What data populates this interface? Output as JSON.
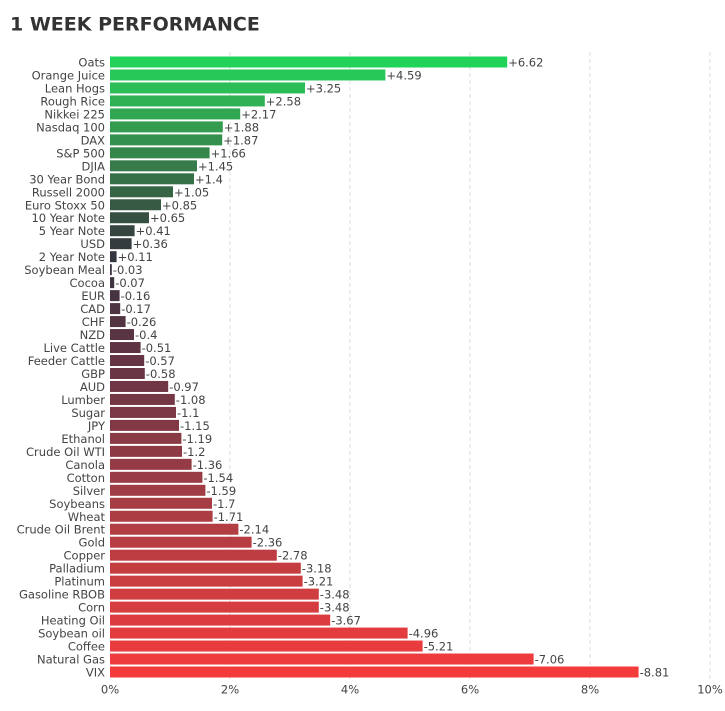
{
  "chart_data": {
    "type": "hbar",
    "title": "1 WEEK PERFORMANCE",
    "categories": [
      "Oats",
      "Orange Juice",
      "Lean Hogs",
      "Rough Rice",
      "Nikkei 225",
      "Nasdaq 100",
      "DAX",
      "S&P 500",
      "DJIA",
      "30 Year Bond",
      "Russell 2000",
      "Euro Stoxx 50",
      "10 Year Note",
      "5 Year Note",
      "USD",
      "2 Year Note",
      "Soybean Meal",
      "Cocoa",
      "EUR",
      "CAD",
      "CHF",
      "NZD",
      "Live Cattle",
      "Feeder Cattle",
      "GBP",
      "AUD",
      "Lumber",
      "Sugar",
      "JPY",
      "Ethanol",
      "Crude Oil WTI",
      "Canola",
      "Cotton",
      "Silver",
      "Soybeans",
      "Wheat",
      "Crude Oil Brent",
      "Gold",
      "Copper",
      "Palladium",
      "Platinum",
      "Gasoline RBOB",
      "Corn",
      "Heating Oil",
      "Soybean oil",
      "Coffee",
      "Natural Gas",
      "VIX"
    ],
    "values": [
      6.62,
      4.59,
      3.25,
      2.58,
      2.17,
      1.88,
      1.87,
      1.66,
      1.45,
      1.4,
      1.05,
      0.85,
      0.65,
      0.41,
      0.36,
      0.11,
      -0.03,
      -0.07,
      -0.16,
      -0.17,
      -0.26,
      -0.4,
      -0.51,
      -0.57,
      -0.58,
      -0.97,
      -1.08,
      -1.1,
      -1.15,
      -1.19,
      -1.2,
      -1.36,
      -1.54,
      -1.59,
      -1.7,
      -1.71,
      -2.14,
      -2.36,
      -2.78,
      -3.18,
      -3.21,
      -3.48,
      -3.48,
      -3.67,
      -4.96,
      -5.21,
      -7.06,
      -8.81
    ],
    "value_labels": [
      "+6.62",
      "+4.59",
      "+3.25",
      "+2.58",
      "+2.17",
      "+1.88",
      "+1.87",
      "+1.66",
      "+1.45",
      "+1.4",
      "+1.05",
      "+0.85",
      "+0.65",
      "+0.41",
      "+0.36",
      "+0.11",
      "-0.03",
      "-0.07",
      "-0.16",
      "-0.17",
      "-0.26",
      "-0.4",
      "-0.51",
      "-0.57",
      "-0.58",
      "-0.97",
      "-1.08",
      "-1.1",
      "-1.15",
      "-1.19",
      "-1.2",
      "-1.36",
      "-1.54",
      "-1.59",
      "-1.7",
      "-1.71",
      "-2.14",
      "-2.36",
      "-2.78",
      "-3.18",
      "-3.21",
      "-3.48",
      "-3.48",
      "-3.67",
      "-4.96",
      "-5.21",
      "-7.06",
      "-8.81"
    ],
    "colors": [
      "#22d35a",
      "#27c858",
      "#2bbd56",
      "#2fb253",
      "#31a751",
      "#339c4f",
      "#34914d",
      "#35864b",
      "#367b49",
      "#367047",
      "#366545",
      "#365a43",
      "#355041",
      "#354640",
      "#343c3e",
      "#33363e",
      "#3a3441",
      "#403442",
      "#463442",
      "#4c3443",
      "#523443",
      "#583444",
      "#5e3444",
      "#643445",
      "#6a3545",
      "#703645",
      "#763745",
      "#7c3845",
      "#823945",
      "#883a45",
      "#8e3a45",
      "#943b45",
      "#9a3c45",
      "#a03c44",
      "#a63d44",
      "#ac3d43",
      "#b23d43",
      "#b83d42",
      "#be3d42",
      "#c43d41",
      "#ca3d41",
      "#d03d40",
      "#d63d40",
      "#dc3c3f",
      "#e23c3e",
      "#e83c3e",
      "#ee3b3d",
      "#f43b3c"
    ],
    "xlim": [
      0,
      10
    ],
    "xticks": [
      {
        "value": 0,
        "label": "0%"
      },
      {
        "value": 2,
        "label": "2%"
      },
      {
        "value": 4,
        "label": "4%"
      },
      {
        "value": 6,
        "label": "6%"
      },
      {
        "value": 8,
        "label": "8%"
      },
      {
        "value": 10,
        "label": "10%"
      }
    ],
    "grid": true
  }
}
